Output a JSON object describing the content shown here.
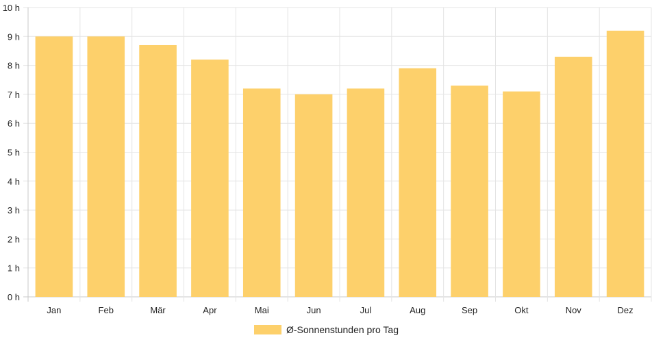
{
  "chart_data": {
    "type": "bar",
    "categories": [
      "Jan",
      "Feb",
      "Mär",
      "Apr",
      "Mai",
      "Jun",
      "Jul",
      "Aug",
      "Sep",
      "Okt",
      "Nov",
      "Dez"
    ],
    "series": [
      {
        "name": "Ø-Sonnenstunden pro Tag",
        "values": [
          9.0,
          9.0,
          8.7,
          8.2,
          7.2,
          7.0,
          7.2,
          7.9,
          7.3,
          7.1,
          8.3,
          9.2
        ]
      }
    ],
    "ylim": [
      0,
      10
    ],
    "yticks": [
      "0 h",
      "1 h",
      "2 h",
      "3 h",
      "4 h",
      "5 h",
      "6 h",
      "7 h",
      "8 h",
      "9 h",
      "10 h"
    ],
    "grid": true,
    "legend_position": "bottom",
    "colors": {
      "bar": "#fdd06b",
      "grid": "#e4e4e4",
      "axis": "#c8c8c8",
      "text": "#222222"
    }
  }
}
